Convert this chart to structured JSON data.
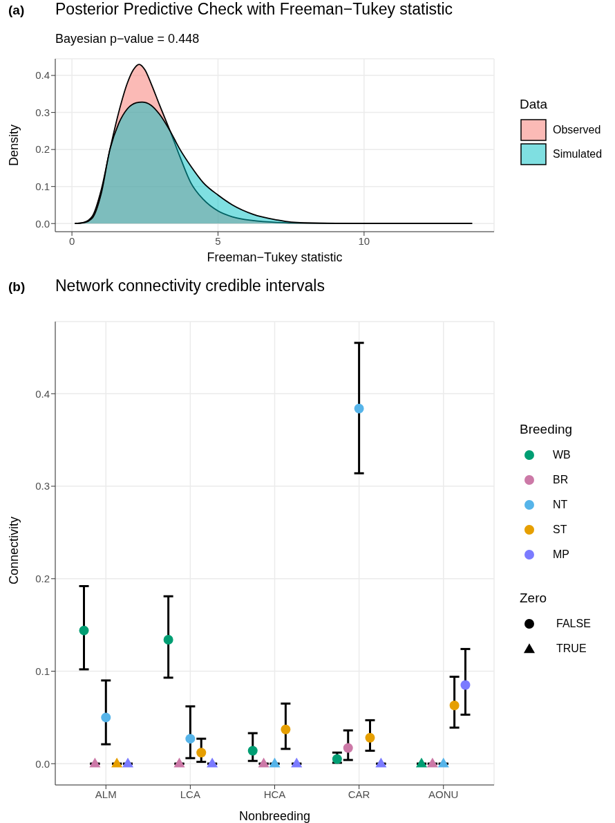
{
  "chart_data": [
    {
      "type": "area",
      "title": "Posterior Predictive Check with Freeman−Tukey statistic",
      "subtitle": "Bayesian p−value =  0.448",
      "xlabel": "Freeman−Tukey statistic",
      "ylabel": "Density",
      "legend_title": "Data",
      "annotations": [
        "(a)"
      ],
      "xlim": [
        -0.57,
        14.45
      ],
      "xticks": [
        0,
        5,
        10
      ],
      "ylim": [
        -0.022,
        0.445
      ],
      "yticks": [
        {
          "value": 0,
          "label": "0.0"
        },
        0.1,
        0.2,
        0.3,
        0.4
      ],
      "grid": true,
      "legend": "right",
      "series": [
        {
          "name": "Observed",
          "color": "#f8766d",
          "x": [
            0.1,
            0.4,
            0.7,
            1.0,
            1.3,
            1.6,
            1.9,
            2.1,
            2.3,
            2.5,
            2.7,
            3.0,
            3.36,
            3.7,
            4.07,
            4.5,
            5.0,
            5.5,
            6.2,
            7.0,
            8.0,
            10,
            13.7
          ],
          "values": [
            0,
            0.003,
            0.02,
            0.09,
            0.2,
            0.3,
            0.38,
            0.415,
            0.43,
            0.415,
            0.38,
            0.32,
            0.25,
            0.18,
            0.11,
            0.065,
            0.034,
            0.018,
            0.008,
            0.003,
            0.001,
            0,
            0
          ]
        },
        {
          "name": "Simulated",
          "color": "#00bfc4",
          "x": [
            0.1,
            0.4,
            0.7,
            1.0,
            1.3,
            1.6,
            1.9,
            2.2,
            2.4,
            2.7,
            3.0,
            3.36,
            3.7,
            4.07,
            4.5,
            5.0,
            5.5,
            6.2,
            7.0,
            7.5,
            8.5,
            10,
            13.7
          ],
          "values": [
            0,
            0.002,
            0.015,
            0.08,
            0.2,
            0.27,
            0.31,
            0.326,
            0.328,
            0.32,
            0.295,
            0.25,
            0.2,
            0.155,
            0.11,
            0.077,
            0.05,
            0.025,
            0.01,
            0.004,
            0.001,
            0,
            0
          ]
        }
      ]
    },
    {
      "type": "scatter",
      "title": "Network connectivity credible intervals",
      "xlabel": "Nonbreeding",
      "ylabel": "Connectivity",
      "legend_title": "Breeding",
      "annotations": [
        "(b)",
        "Zero",
        "FALSE",
        "TRUE"
      ],
      "categories": [
        "ALM",
        "LCA",
        "HCA",
        "CAR",
        "AONU"
      ],
      "ylim": [
        -0.023,
        0.478
      ],
      "yticks": [
        {
          "value": 0,
          "label": "0.0"
        },
        0.1,
        0.2,
        0.3,
        0.4
      ],
      "grid": true,
      "legend": "right",
      "marker": "circle",
      "series": [
        {
          "name": "WB",
          "color": "#009e73",
          "values": [
            0.144,
            0.134,
            0.014,
            0.005,
            null
          ],
          "errors": [
            [
              0.102,
              0.192
            ],
            [
              0.093,
              0.181
            ],
            [
              0.003,
              0.033
            ],
            [
              0.001,
              0.012
            ],
            null
          ]
        },
        {
          "name": "BR",
          "color": "#cc79a7",
          "values": [
            null,
            null,
            null,
            0.017,
            null
          ],
          "errors": [
            null,
            null,
            null,
            [
              0.004,
              0.036
            ],
            null
          ]
        },
        {
          "name": "NT",
          "color": "#56b4e9",
          "values": [
            0.05,
            0.027,
            null,
            0.384,
            null
          ],
          "errors": [
            [
              0.021,
              0.09
            ],
            [
              0.006,
              0.062
            ],
            null,
            [
              0.314,
              0.455
            ],
            null
          ]
        },
        {
          "name": "ST",
          "color": "#e69f00",
          "values": [
            null,
            0.012,
            0.037,
            0.028,
            0.063
          ],
          "errors": [
            null,
            [
              0.002,
              0.027
            ],
            [
              0.016,
              0.065
            ],
            [
              0.014,
              0.047
            ],
            [
              0.039,
              0.094
            ]
          ]
        },
        {
          "name": "MP",
          "color": "#7b7bff",
          "values": [
            null,
            null,
            null,
            null,
            0.085
          ],
          "errors": [
            null,
            null,
            null,
            null,
            [
              0.053,
              0.124
            ]
          ]
        },
        {
          "color": "#009e73",
          "marker": "triangle",
          "values": [
            null,
            null,
            null,
            null,
            0
          ],
          "errors": [
            null,
            null,
            null,
            null,
            [
              0,
              0
            ]
          ]
        },
        {
          "color": "#cc79a7",
          "marker": "triangle",
          "values": [
            0,
            0,
            0,
            null,
            0
          ],
          "errors": [
            [
              0,
              0
            ],
            [
              0,
              0
            ],
            [
              0,
              0
            ],
            null,
            [
              0,
              0
            ]
          ]
        },
        {
          "color": "#56b4e9",
          "marker": "triangle",
          "values": [
            null,
            null,
            0,
            null,
            0
          ],
          "errors": [
            null,
            null,
            [
              0,
              0
            ],
            null,
            [
              0,
              0
            ]
          ]
        },
        {
          "color": "#e69f00",
          "marker": "triangle",
          "values": [
            0,
            null,
            null,
            null,
            null
          ],
          "errors": [
            [
              0,
              0
            ],
            null,
            null,
            null,
            null
          ]
        },
        {
          "color": "#7b7bff",
          "marker": "triangle",
          "values": [
            0,
            0,
            0,
            0,
            null
          ],
          "errors": [
            [
              0,
              0
            ],
            [
              0,
              0
            ],
            [
              0,
              0
            ],
            [
              0,
              0
            ],
            null
          ]
        }
      ]
    }
  ]
}
